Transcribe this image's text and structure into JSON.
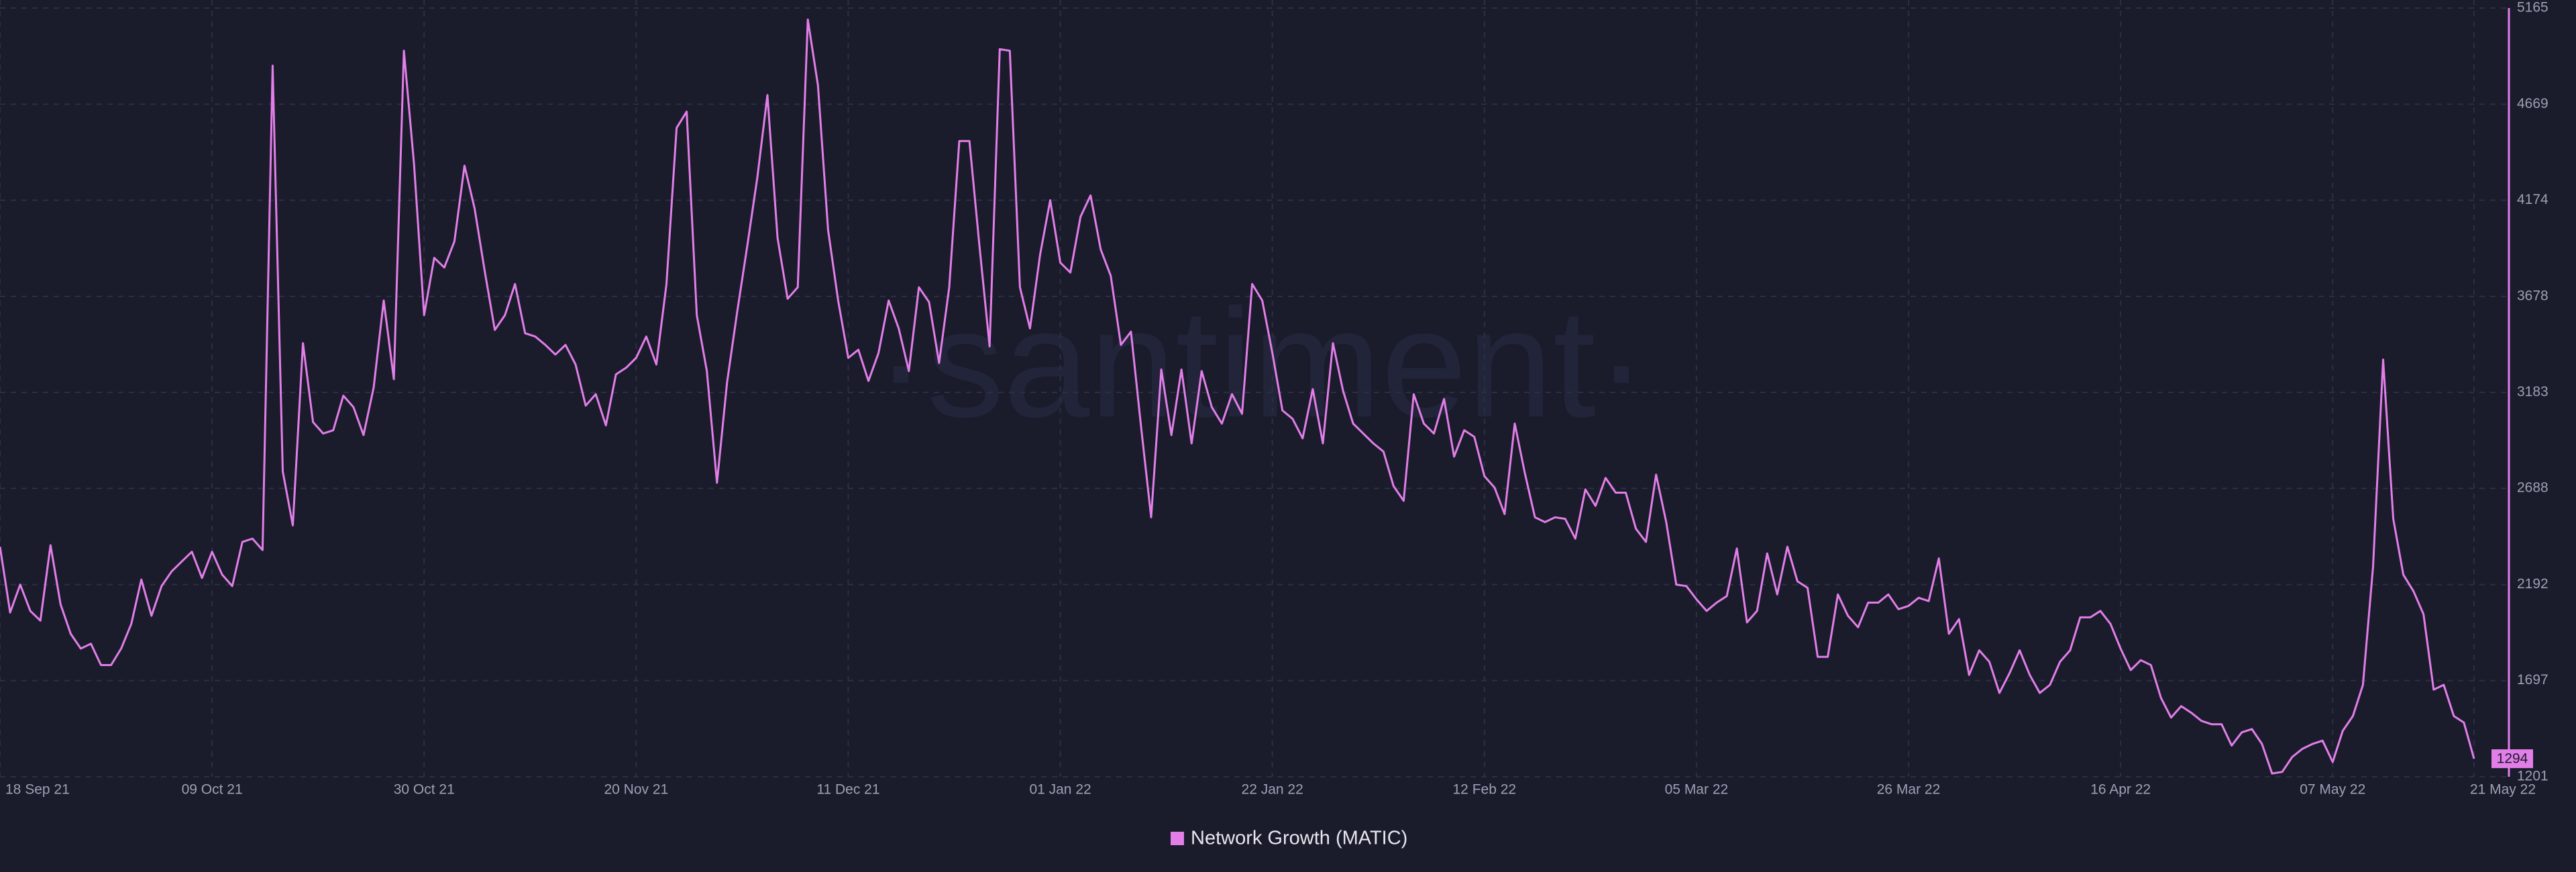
{
  "chart_data": {
    "type": "line",
    "watermark": "·santiment·",
    "categories": [
      "18 Sep 21",
      null,
      null,
      null,
      null,
      null,
      null,
      null,
      null,
      null,
      null,
      null,
      null,
      null,
      null,
      null,
      null,
      null,
      null,
      null,
      null,
      "09 Oct 21",
      null,
      null,
      null,
      null,
      null,
      null,
      null,
      null,
      null,
      null,
      null,
      null,
      null,
      null,
      null,
      null,
      null,
      null,
      null,
      null,
      "30 Oct 21",
      null,
      null,
      null,
      null,
      null,
      null,
      null,
      null,
      null,
      null,
      null,
      null,
      null,
      null,
      null,
      null,
      null,
      null,
      null,
      null,
      "20 Nov 21",
      null,
      null,
      null,
      null,
      null,
      null,
      null,
      null,
      null,
      null,
      null,
      null,
      null,
      null,
      null,
      null,
      null,
      null,
      null,
      null,
      "11 Dec 21",
      null,
      null,
      null,
      null,
      null,
      null,
      null,
      null,
      null,
      null,
      null,
      null,
      null,
      null,
      null,
      null,
      null,
      null,
      null,
      null,
      "01 Jan 22",
      null,
      null,
      null,
      null,
      null,
      null,
      null,
      null,
      null,
      null,
      null,
      null,
      null,
      null,
      null,
      null,
      null,
      null,
      null,
      null,
      "22 Jan 22",
      null,
      null,
      null,
      null,
      null,
      null,
      null,
      null,
      null,
      null,
      null,
      null,
      null,
      null,
      null,
      null,
      null,
      null,
      null,
      null,
      "12 Feb 22",
      null,
      null,
      null,
      null,
      null,
      null,
      null,
      null,
      null,
      null,
      null,
      null,
      null,
      null,
      null,
      null,
      null,
      null,
      null,
      null,
      "05 Mar 22",
      null,
      null,
      null,
      null,
      null,
      null,
      null,
      null,
      null,
      null,
      null,
      null,
      null,
      null,
      null,
      null,
      null,
      null,
      null,
      null,
      "26 Mar 22",
      null,
      null,
      null,
      null,
      null,
      null,
      null,
      null,
      null,
      null,
      null,
      null,
      null,
      null,
      null,
      null,
      null,
      null,
      null,
      null,
      "16 Apr 22",
      null,
      null,
      null,
      null,
      null,
      null,
      null,
      null,
      null,
      null,
      null,
      null,
      null,
      null,
      null,
      null,
      null,
      null,
      null,
      null,
      "07 May 22",
      null,
      null,
      null,
      null,
      null,
      null,
      null,
      null,
      null,
      null,
      null,
      null,
      null,
      "21 May 22"
    ],
    "series": [
      {
        "name": "Network Growth (MATIC)",
        "color": "#e27ee8",
        "values": [
          2387,
          2048,
          2192,
          2056,
          2006,
          2395,
          2090,
          1938,
          1862,
          1887,
          1777,
          1777,
          1862,
          1989,
          2218,
          2031,
          2184,
          2260,
          2311,
          2361,
          2226,
          2361,
          2243,
          2184,
          2412,
          2429,
          2370,
          4868,
          2776,
          2497,
          3437,
          3030,
          2971,
          2988,
          3166,
          3107,
          2963,
          3208,
          3657,
          3251,
          4945,
          4360,
          3581,
          3877,
          3827,
          3962,
          4352,
          4131,
          3810,
          3505,
          3581,
          3742,
          3488,
          3471,
          3428,
          3378,
          3428,
          3327,
          3115,
          3174,
          3013,
          3276,
          3310,
          3361,
          3471,
          3327,
          3742,
          4547,
          4631,
          3581,
          3293,
          2717,
          3234,
          3598,
          3937,
          4293,
          4716,
          3979,
          3666,
          3725,
          5106,
          4767,
          4021,
          3657,
          3361,
          3403,
          3242,
          3386,
          3657,
          3513,
          3293,
          3725,
          3649,
          3335,
          3725,
          4479,
          4479,
          3937,
          3420,
          4953,
          4945,
          3725,
          3513,
          3894,
          4174,
          3852,
          3801,
          4089,
          4199,
          3920,
          3784,
          3428,
          3496,
          3005,
          2539,
          3301,
          2963,
          3301,
          2920,
          3293,
          3107,
          3022,
          3174,
          3073,
          3742,
          3657,
          3386,
          3090,
          3047,
          2946,
          3200,
          2920,
          3437,
          3191,
          3022,
          2971,
          2920,
          2878,
          2700,
          2624,
          3174,
          3022,
          2971,
          3149,
          2852,
          2988,
          2954,
          2751,
          2692,
          2556,
          3022,
          2768,
          2539,
          2514,
          2539,
          2531,
          2429,
          2683,
          2598,
          2742,
          2666,
          2666,
          2480,
          2412,
          2759,
          2514,
          2192,
          2184,
          2116,
          2056,
          2099,
          2133,
          2378,
          1997,
          2056,
          2353,
          2141,
          2387,
          2209,
          2175,
          1819,
          1819,
          2141,
          2031,
          1972,
          2099,
          2099,
          2141,
          2065,
          2082,
          2124,
          2107,
          2327,
          1938,
          2014,
          1726,
          1853,
          1794,
          1633,
          1735,
          1853,
          1726,
          1633,
          1675,
          1794,
          1853,
          2023,
          2023,
          2056,
          1989,
          1862,
          1751,
          1802,
          1777,
          1607,
          1506,
          1565,
          1531,
          1489,
          1472,
          1472,
          1362,
          1430,
          1447,
          1370,
          1218,
          1226,
          1303,
          1345,
          1370,
          1387,
          1277,
          1438,
          1514,
          1675,
          2285,
          3352,
          2531,
          2243,
          2158,
          2039,
          1650,
          1675,
          1514,
          1480,
          1294
        ]
      }
    ],
    "ylim": [
      1201,
      5165
    ],
    "yticks": [
      1201,
      1697,
      2192,
      2688,
      3183,
      3678,
      4174,
      4669,
      5165
    ],
    "grid": true,
    "legend": "bottom"
  }
}
